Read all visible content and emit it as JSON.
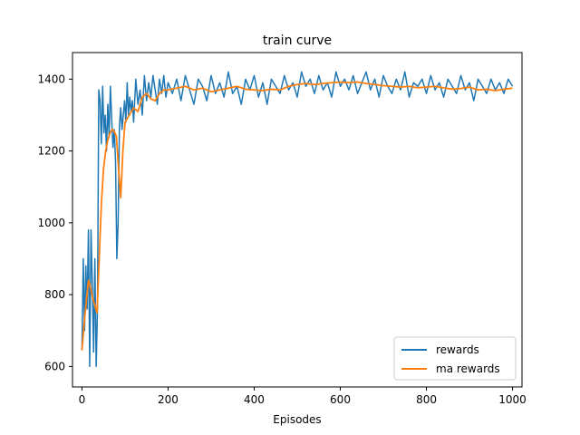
{
  "chart_data": {
    "type": "line",
    "title": "train curve",
    "xlabel": "Episodes",
    "ylabel": "",
    "xlim": [
      -22,
      1022
    ],
    "ylim": [
      543,
      1474
    ],
    "xticks": [
      0,
      200,
      400,
      600,
      800,
      1000
    ],
    "yticks": [
      600,
      800,
      1000,
      1200,
      1400
    ],
    "grid": false,
    "legend_position": "lower-right",
    "series": [
      {
        "name": "rewards",
        "color": "#1f77b4",
        "x": [
          0,
          3,
          6,
          9,
          12,
          15,
          18,
          21,
          24,
          27,
          30,
          33,
          36,
          39,
          42,
          45,
          48,
          51,
          54,
          57,
          60,
          63,
          66,
          69,
          72,
          75,
          78,
          81,
          84,
          87,
          90,
          93,
          96,
          99,
          102,
          105,
          108,
          111,
          114,
          117,
          120,
          125,
          130,
          135,
          140,
          145,
          150,
          155,
          160,
          165,
          170,
          175,
          180,
          185,
          190,
          195,
          200,
          210,
          220,
          230,
          240,
          250,
          260,
          270,
          280,
          290,
          300,
          310,
          320,
          330,
          340,
          350,
          360,
          370,
          380,
          390,
          400,
          410,
          420,
          430,
          440,
          450,
          460,
          470,
          480,
          490,
          500,
          510,
          520,
          530,
          540,
          550,
          560,
          570,
          580,
          590,
          600,
          610,
          620,
          630,
          640,
          650,
          660,
          670,
          680,
          690,
          700,
          710,
          720,
          730,
          740,
          750,
          760,
          770,
          780,
          790,
          800,
          810,
          820,
          830,
          840,
          850,
          860,
          870,
          880,
          890,
          900,
          910,
          920,
          930,
          940,
          950,
          960,
          970,
          980,
          990,
          1000
        ],
        "values": [
          645,
          900,
          700,
          880,
          760,
          980,
          600,
          980,
          830,
          640,
          900,
          600,
          760,
          1370,
          1340,
          1220,
          1380,
          1250,
          1300,
          1200,
          1330,
          1240,
          1380,
          1290,
          1210,
          1260,
          1170,
          900,
          1000,
          1270,
          1320,
          1260,
          1300,
          1340,
          1280,
          1390,
          1300,
          1350,
          1310,
          1340,
          1280,
          1400,
          1330,
          1370,
          1300,
          1410,
          1340,
          1390,
          1350,
          1410,
          1370,
          1330,
          1400,
          1360,
          1410,
          1350,
          1390,
          1360,
          1400,
          1340,
          1410,
          1370,
          1330,
          1400,
          1380,
          1340,
          1410,
          1360,
          1390,
          1350,
          1420,
          1360,
          1380,
          1330,
          1400,
          1370,
          1410,
          1350,
          1390,
          1330,
          1400,
          1380,
          1360,
          1410,
          1370,
          1390,
          1350,
          1420,
          1380,
          1400,
          1360,
          1410,
          1370,
          1390,
          1350,
          1420,
          1380,
          1400,
          1370,
          1410,
          1360,
          1390,
          1420,
          1370,
          1400,
          1350,
          1410,
          1380,
          1360,
          1400,
          1370,
          1420,
          1350,
          1390,
          1380,
          1400,
          1360,
          1410,
          1370,
          1390,
          1350,
          1400,
          1380,
          1360,
          1410,
          1370,
          1390,
          1340,
          1400,
          1380,
          1360,
          1400,
          1370,
          1390,
          1360,
          1400,
          1380
        ]
      },
      {
        "name": "ma rewards",
        "color": "#ff7f0e",
        "x": [
          0,
          5,
          10,
          15,
          20,
          25,
          30,
          35,
          40,
          45,
          50,
          55,
          60,
          65,
          70,
          75,
          80,
          85,
          90,
          95,
          100,
          110,
          120,
          130,
          140,
          150,
          160,
          170,
          180,
          190,
          200,
          220,
          240,
          260,
          280,
          300,
          320,
          340,
          360,
          380,
          400,
          420,
          440,
          460,
          480,
          500,
          520,
          540,
          560,
          580,
          600,
          620,
          640,
          660,
          680,
          700,
          720,
          740,
          760,
          780,
          800,
          820,
          840,
          860,
          880,
          900,
          920,
          940,
          960,
          980,
          1000
        ],
        "values": [
          645,
          720,
          780,
          840,
          820,
          790,
          770,
          750,
          900,
          1050,
          1150,
          1200,
          1230,
          1250,
          1260,
          1255,
          1240,
          1150,
          1070,
          1200,
          1280,
          1300,
          1320,
          1310,
          1350,
          1360,
          1345,
          1340,
          1360,
          1370,
          1370,
          1375,
          1380,
          1370,
          1375,
          1365,
          1370,
          1375,
          1380,
          1372,
          1370,
          1368,
          1372,
          1370,
          1380,
          1385,
          1388,
          1385,
          1388,
          1390,
          1392,
          1390,
          1392,
          1388,
          1385,
          1382,
          1380,
          1378,
          1380,
          1376,
          1378,
          1380,
          1376,
          1372,
          1374,
          1378,
          1370,
          1372,
          1368,
          1372,
          1375
        ]
      }
    ]
  }
}
